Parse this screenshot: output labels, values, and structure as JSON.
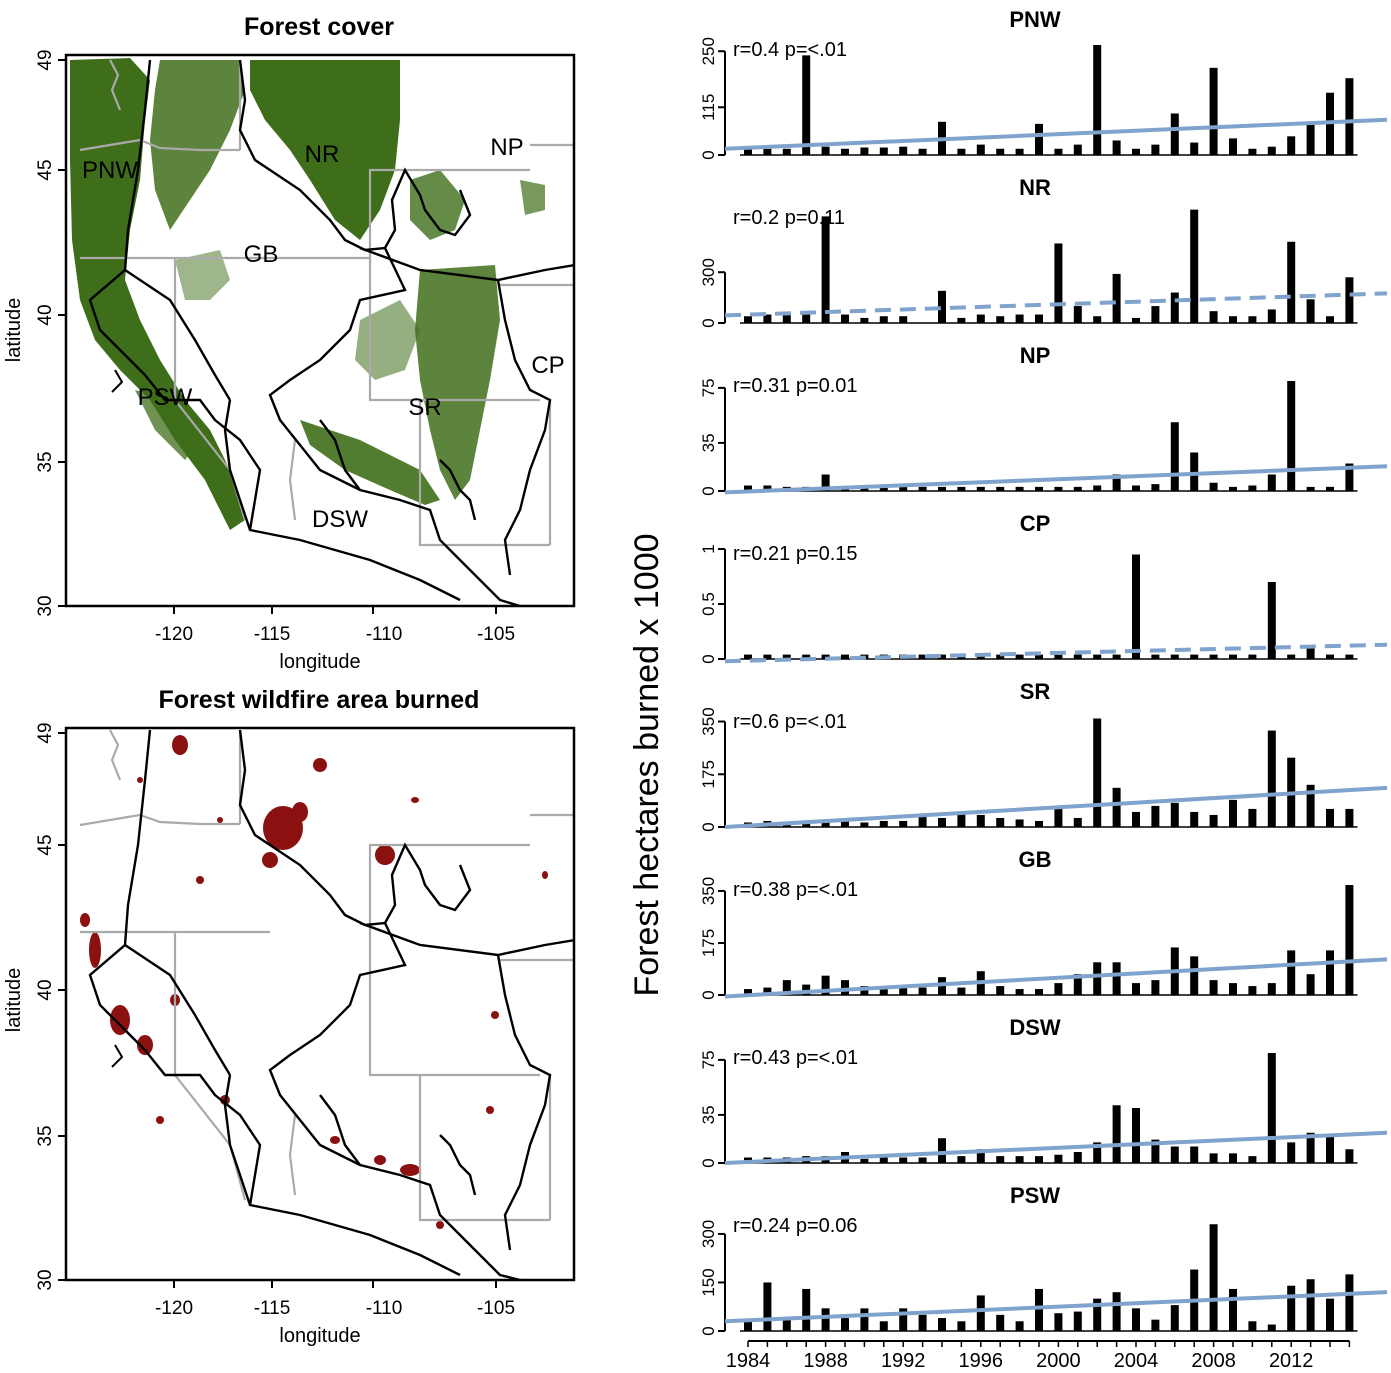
{
  "maps": [
    {
      "title": "Forest cover",
      "xlabel": "longitude",
      "ylabel": "latitude",
      "xticks": [
        "-120",
        "-115",
        "-110",
        "-105"
      ],
      "yticks": [
        "30",
        "35",
        "40",
        "45",
        "49"
      ],
      "fill_color": "#3f6e1a",
      "region_labels": [
        "PNW",
        "NR",
        "NP",
        "GB",
        "CP",
        "PSW",
        "SR",
        "DSW"
      ]
    },
    {
      "title": "Forest wildfire area burned",
      "xlabel": "longitude",
      "ylabel": "latitude",
      "xticks": [
        "-120",
        "-115",
        "-110",
        "-105"
      ],
      "yticks": [
        "30",
        "35",
        "40",
        "45",
        "49"
      ],
      "fill_color": "#8b1010"
    }
  ],
  "bars_ylabel": "Forest hectares burned x 1000",
  "bars_xticks": [
    "1984",
    "1988",
    "1992",
    "1996",
    "2000",
    "2004",
    "2008",
    "2012"
  ],
  "colors": {
    "bars": "#000000",
    "trend": "#7fa3cc",
    "state_lines": "#aaaaaa",
    "region_lines": "#000000"
  },
  "chart_data": [
    {
      "type": "bar",
      "title": "PNW",
      "stat": "r=0.4 p=<.01",
      "categories": [
        1984,
        1985,
        1986,
        1987,
        1988,
        1989,
        1990,
        1991,
        1992,
        1993,
        1994,
        1995,
        1996,
        1997,
        1998,
        1999,
        2000,
        2001,
        2002,
        2003,
        2004,
        2005,
        2006,
        2007,
        2008,
        2009,
        2010,
        2011,
        2012,
        2013,
        2014,
        2015
      ],
      "values": [
        15,
        15,
        15,
        240,
        20,
        15,
        18,
        18,
        20,
        15,
        80,
        15,
        25,
        15,
        15,
        75,
        15,
        25,
        265,
        35,
        15,
        25,
        100,
        30,
        210,
        40,
        15,
        20,
        45,
        80,
        150,
        185
      ],
      "yticks": [
        "0",
        "115",
        "250"
      ],
      "ylim": [
        0,
        265
      ],
      "trend": {
        "start": 15,
        "end": 85,
        "style": "solid"
      }
    },
    {
      "type": "bar",
      "title": "NR",
      "stat": "r=0.2 p=0.11",
      "categories": [
        1984,
        1985,
        1986,
        1987,
        1988,
        1989,
        1990,
        1991,
        1992,
        1993,
        1994,
        1995,
        1996,
        1997,
        1998,
        1999,
        2000,
        2001,
        2002,
        2003,
        2004,
        2005,
        2006,
        2007,
        2008,
        2009,
        2010,
        2011,
        2012,
        2013,
        2014,
        2015
      ],
      "values": [
        40,
        50,
        50,
        50,
        630,
        50,
        30,
        40,
        40,
        0,
        190,
        30,
        50,
        40,
        50,
        50,
        470,
        100,
        40,
        290,
        30,
        100,
        180,
        670,
        70,
        40,
        40,
        80,
        480,
        140,
        40,
        270
      ],
      "yticks": [
        "0",
        "300"
      ],
      "ylim": [
        0,
        650
      ],
      "trend": {
        "start": 45,
        "end": 175,
        "style": "dashed"
      }
    },
    {
      "type": "bar",
      "title": "NP",
      "stat": "r=0.31 p=0.01",
      "categories": [
        1984,
        1985,
        1986,
        1987,
        1988,
        1989,
        1990,
        1991,
        1992,
        1993,
        1994,
        1995,
        1996,
        1997,
        1998,
        1999,
        2000,
        2001,
        2002,
        2003,
        2004,
        2005,
        2006,
        2007,
        2008,
        2009,
        2010,
        2011,
        2012,
        2013,
        2014,
        2015
      ],
      "values": [
        4,
        4,
        3,
        3,
        12,
        3,
        3,
        4,
        3,
        3,
        3,
        3,
        3,
        3,
        3,
        3,
        3,
        3,
        4,
        12,
        4,
        5,
        50,
        28,
        6,
        3,
        4,
        12,
        80,
        3,
        3,
        20
      ],
      "yticks": [
        "0",
        "35",
        "75"
      ],
      "ylim": [
        0,
        80
      ],
      "trend": {
        "start": -1,
        "end": 18,
        "style": "solid"
      }
    },
    {
      "type": "bar",
      "title": "CP",
      "stat": "r=0.21 p=0.15",
      "categories": [
        1984,
        1985,
        1986,
        1987,
        1988,
        1989,
        1990,
        1991,
        1992,
        1993,
        1994,
        1995,
        1996,
        1997,
        1998,
        1999,
        2000,
        2001,
        2002,
        2003,
        2004,
        2005,
        2006,
        2007,
        2008,
        2009,
        2010,
        2011,
        2012,
        2013,
        2014,
        2015
      ],
      "values": [
        0.04,
        0.04,
        0.04,
        0.04,
        0.04,
        0.04,
        0.04,
        0.04,
        0.04,
        0.04,
        0.04,
        0.04,
        0.04,
        0.04,
        0.04,
        0.04,
        0.04,
        0.04,
        0.04,
        0.04,
        0.95,
        0.04,
        0.04,
        0.04,
        0.04,
        0.04,
        0.04,
        0.7,
        0.04,
        0.12,
        0.04,
        0.04
      ],
      "yticks": [
        "0",
        "0.5",
        "1"
      ],
      "ylim": [
        0,
        1.0
      ],
      "trend": {
        "start": -0.02,
        "end": 0.13,
        "style": "dashed"
      }
    },
    {
      "type": "bar",
      "title": "SR",
      "stat": "r=0.6 p=<.01",
      "categories": [
        1984,
        1985,
        1986,
        1987,
        1988,
        1989,
        1990,
        1991,
        1992,
        1993,
        1994,
        1995,
        1996,
        1997,
        1998,
        1999,
        2000,
        2001,
        2002,
        2003,
        2004,
        2005,
        2006,
        2007,
        2008,
        2009,
        2010,
        2011,
        2012,
        2013,
        2014,
        2015
      ],
      "values": [
        15,
        20,
        15,
        20,
        15,
        25,
        15,
        20,
        20,
        45,
        30,
        50,
        40,
        30,
        25,
        20,
        60,
        30,
        360,
        130,
        50,
        70,
        80,
        50,
        40,
        90,
        60,
        320,
        230,
        140,
        60,
        60
      ],
      "yticks": [
        "0",
        "175",
        "350"
      ],
      "ylim": [
        0,
        365
      ],
      "trend": {
        "start": 0,
        "end": 130,
        "style": "solid"
      }
    },
    {
      "type": "bar",
      "title": "GB",
      "stat": "r=0.38 p=<.01",
      "categories": [
        1984,
        1985,
        1986,
        1987,
        1988,
        1989,
        1990,
        1991,
        1992,
        1993,
        1994,
        1995,
        1996,
        1997,
        1998,
        1999,
        2000,
        2001,
        2002,
        2003,
        2004,
        2005,
        2006,
        2007,
        2008,
        2009,
        2010,
        2011,
        2012,
        2013,
        2014,
        2015
      ],
      "values": [
        20,
        25,
        50,
        35,
        65,
        50,
        30,
        25,
        30,
        25,
        60,
        25,
        80,
        30,
        20,
        20,
        40,
        70,
        110,
        110,
        40,
        50,
        160,
        130,
        50,
        40,
        30,
        40,
        150,
        70,
        150,
        370
      ],
      "yticks": [
        "0",
        "175",
        "350"
      ],
      "ylim": [
        0,
        370
      ],
      "trend": {
        "start": -5,
        "end": 120,
        "style": "solid"
      }
    },
    {
      "type": "bar",
      "title": "DSW",
      "stat": "r=0.43 p=<.01",
      "categories": [
        1984,
        1985,
        1986,
        1987,
        1988,
        1989,
        1990,
        1991,
        1992,
        1993,
        1994,
        1995,
        1996,
        1997,
        1998,
        1999,
        2000,
        2001,
        2002,
        2003,
        2004,
        2005,
        2006,
        2007,
        2008,
        2009,
        2010,
        2011,
        2012,
        2013,
        2014,
        2015
      ],
      "values": [
        4,
        4,
        4,
        5,
        5,
        8,
        3,
        4,
        4,
        4,
        18,
        5,
        10,
        5,
        5,
        5,
        6,
        8,
        15,
        42,
        40,
        17,
        12,
        12,
        7,
        7,
        5,
        80,
        15,
        22,
        20,
        10
      ],
      "yticks": [
        "0",
        "35",
        "75"
      ],
      "ylim": [
        0,
        80
      ],
      "trend": {
        "start": 0,
        "end": 22,
        "style": "solid"
      }
    },
    {
      "type": "bar",
      "title": "PSW",
      "stat": "r=0.24 p=0.06",
      "categories": [
        1984,
        1985,
        1986,
        1987,
        1988,
        1989,
        1990,
        1991,
        1992,
        1993,
        1994,
        1995,
        1996,
        1997,
        1998,
        1999,
        2000,
        2001,
        2002,
        2003,
        2004,
        2005,
        2006,
        2007,
        2008,
        2009,
        2010,
        2011,
        2012,
        2013,
        2014,
        2015
      ],
      "values": [
        30,
        150,
        35,
        130,
        70,
        40,
        70,
        30,
        70,
        50,
        40,
        30,
        110,
        50,
        30,
        130,
        55,
        60,
        100,
        120,
        70,
        35,
        80,
        190,
        330,
        130,
        30,
        20,
        140,
        160,
        100,
        175
      ],
      "yticks": [
        "0",
        "150",
        "300"
      ],
      "ylim": [
        0,
        340
      ],
      "trend": {
        "start": 30,
        "end": 120,
        "style": "solid"
      }
    }
  ]
}
